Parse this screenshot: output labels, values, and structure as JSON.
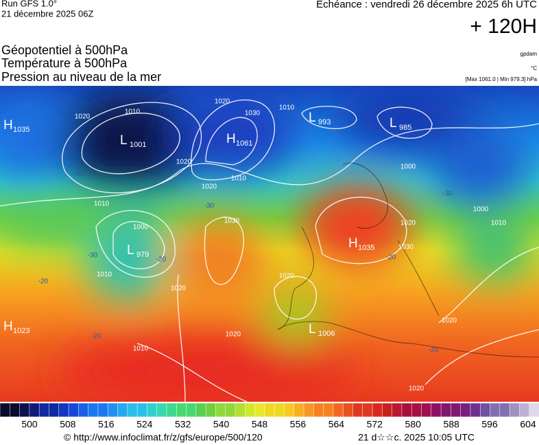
{
  "header": {
    "run": "Run GFS 1.0°",
    "date": "21 décembre 2025 06Z",
    "echeance": "Echéance : vendredi 26 décembre 2025 6h UTC",
    "horizon": "+ 120H"
  },
  "fields": [
    "Géopotentiel à 500hPa",
    "Température à 500hPa",
    "Pression au niveau de la mer"
  ],
  "units": {
    "geopotential": "gpdam",
    "temperature": "°C",
    "pressure": "[Max 1061.0 | Min 979.3] hPa"
  },
  "centers": [
    {
      "type": "H",
      "value": "1035"
    },
    {
      "type": "L",
      "value": "1001"
    },
    {
      "type": "H",
      "value": "1061"
    },
    {
      "type": "L",
      "value": "993"
    },
    {
      "type": "L",
      "value": "985"
    },
    {
      "type": "L",
      "value": "979"
    },
    {
      "type": "H",
      "value": "1035"
    },
    {
      "type": "H",
      "value": "1023"
    },
    {
      "type": "L",
      "value": "1006"
    }
  ],
  "contour_labels": [
    "1010",
    "1020",
    "1010",
    "1000",
    "-30",
    "-30",
    "-30",
    "-20",
    "1010",
    "-20",
    "1020",
    "1030",
    "1020",
    "1020",
    "-20",
    "1010",
    "1030",
    "1020",
    "1020",
    "1010",
    "1020",
    "1010",
    "1000",
    "1000",
    "1010",
    "-30",
    "1020",
    "1030",
    "-20",
    "1020",
    "-20",
    "1020"
  ],
  "colorbar": {
    "labels": [
      "500",
      "508",
      "516",
      "524",
      "532",
      "540",
      "548",
      "556",
      "564",
      "572",
      "580",
      "588",
      "596",
      "604"
    ]
  },
  "footer": {
    "source": "© http://www.infoclimat.fr/z/gfs/europe/500/120",
    "generated": "21 d☆☆c. 2025 10:05 UTC"
  }
}
